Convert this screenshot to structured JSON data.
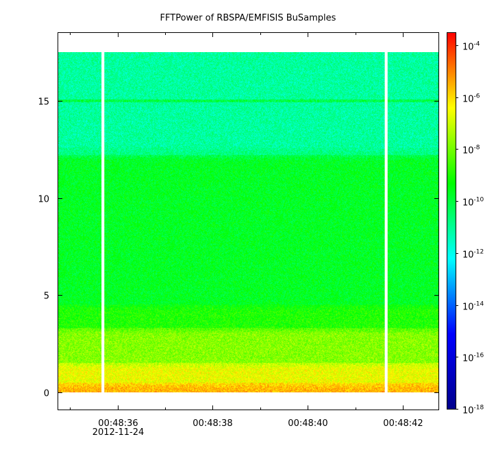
{
  "chart_data": {
    "type": "heatmap",
    "title": "FFTPower of RBSPA/EMFISIS  BuSamples",
    "xlabel": "",
    "ylabel": "",
    "x_ticks": [
      {
        "label": "00:48:36",
        "sublabel": "2012-11-24",
        "t": 36.2
      },
      {
        "label": "00:48:38",
        "t": 38.2
      },
      {
        "label": "00:48:40",
        "t": 40.2
      },
      {
        "label": "00:48:42",
        "t": 42.2
      }
    ],
    "x_minor_ticks": [
      35.2,
      37.2,
      39.2,
      41.2
    ],
    "xlim": [
      34.95,
      42.95
    ],
    "data_extent_x": [
      34.95,
      42.95
    ],
    "data_gaps_x": [
      {
        "start": 35.86,
        "end": 35.92
      },
      {
        "start": 41.82,
        "end": 41.88
      }
    ],
    "y_ticks": [
      0,
      5,
      10,
      15
    ],
    "ylim": [
      -0.9,
      18.5
    ],
    "data_extent_y": [
      0,
      17.5
    ],
    "colorbar": {
      "scale": "log",
      "range": [
        1e-18,
        0.0003
      ],
      "ticks": [
        {
          "base": "10",
          "exp": "-4",
          "value": -4
        },
        {
          "base": "10",
          "exp": "-6",
          "value": -6
        },
        {
          "base": "10",
          "exp": "-8",
          "value": -8
        },
        {
          "base": "10",
          "exp": "-10",
          "value": -10
        },
        {
          "base": "10",
          "exp": "-12",
          "value": -12
        },
        {
          "base": "10",
          "exp": "-14",
          "value": -14
        },
        {
          "base": "10",
          "exp": "-16",
          "value": -16
        },
        {
          "base": "10",
          "exp": "-18",
          "value": -18
        }
      ],
      "colors": [
        "#00008b",
        "#0000ff",
        "#00ffff",
        "#00ff00",
        "#ffff00",
        "#ff0000"
      ]
    },
    "frequency_bands": [
      {
        "y0": 0.0,
        "y1": 0.5,
        "log10_power": -5.6
      },
      {
        "y0": 0.5,
        "y1": 1.5,
        "log10_power": -6.6
      },
      {
        "y0": 1.5,
        "y1": 3.3,
        "log10_power": -7.8
      },
      {
        "y0": 3.3,
        "y1": 4.5,
        "log10_power": -9.0
      },
      {
        "y0": 4.5,
        "y1": 12.2,
        "log10_power": -9.7
      },
      {
        "y0": 12.2,
        "y1": 12.6,
        "log10_power": -10.8
      },
      {
        "y0": 12.6,
        "y1": 17.5,
        "log10_power": -11.1
      }
    ],
    "spectral_lines": [
      {
        "y": 15.0,
        "log10_power": -10.1
      }
    ]
  }
}
